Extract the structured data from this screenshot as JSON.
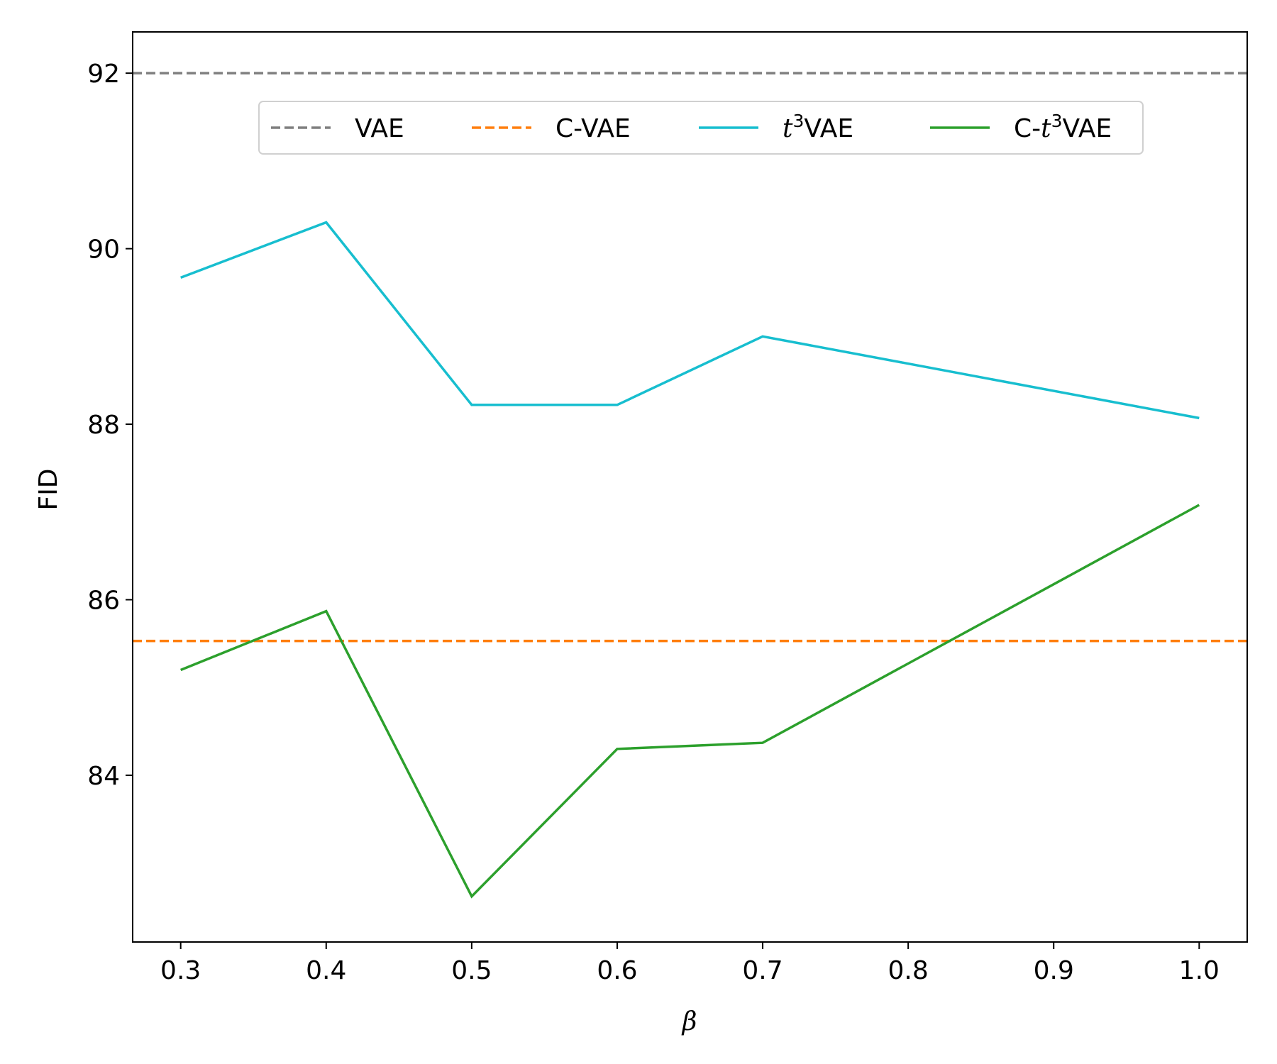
{
  "chart_data": {
    "type": "line",
    "xlabel": "β",
    "ylabel": "FID",
    "xlim": [
      0.267,
      1.033
    ],
    "ylim": [
      82.1,
      92.47
    ],
    "xticks": [
      "0.3",
      "0.4",
      "0.5",
      "0.6",
      "0.7",
      "0.8",
      "0.9",
      "1.0"
    ],
    "yticks": [
      "84",
      "86",
      "88",
      "90",
      "92"
    ],
    "grid": false,
    "legend": {
      "placement": "upper-center",
      "columns": 4,
      "entries": [
        {
          "prefix": "",
          "italic": "",
          "sup": "",
          "suffix": "VAE"
        },
        {
          "prefix": "C-VAE",
          "italic": "",
          "sup": "",
          "suffix": ""
        },
        {
          "prefix": "",
          "italic": "t",
          "sup": "3",
          "suffix": "VAE"
        },
        {
          "prefix": "C-",
          "italic": "t",
          "sup": "3",
          "suffix": "VAE"
        }
      ]
    },
    "series": [
      {
        "name": "VAE",
        "kind": "hline",
        "value": 92.0,
        "color": "#7f7f7f",
        "dash": true
      },
      {
        "name": "C-VAE",
        "kind": "hline",
        "value": 85.53,
        "color": "#ff7f0e",
        "dash": true
      },
      {
        "name": "t3VAE",
        "kind": "line",
        "color": "#17becf",
        "dash": false,
        "x": [
          0.3,
          0.4,
          0.5,
          0.6,
          0.7,
          1.0
        ],
        "y": [
          89.67,
          90.3,
          88.22,
          88.22,
          89.0,
          88.07
        ]
      },
      {
        "name": "C-t3VAE",
        "kind": "line",
        "color": "#2ca02c",
        "dash": false,
        "x": [
          0.3,
          0.4,
          0.5,
          0.6,
          0.7,
          1.0
        ],
        "y": [
          85.2,
          85.87,
          82.62,
          84.3,
          84.37,
          87.08
        ]
      }
    ]
  }
}
